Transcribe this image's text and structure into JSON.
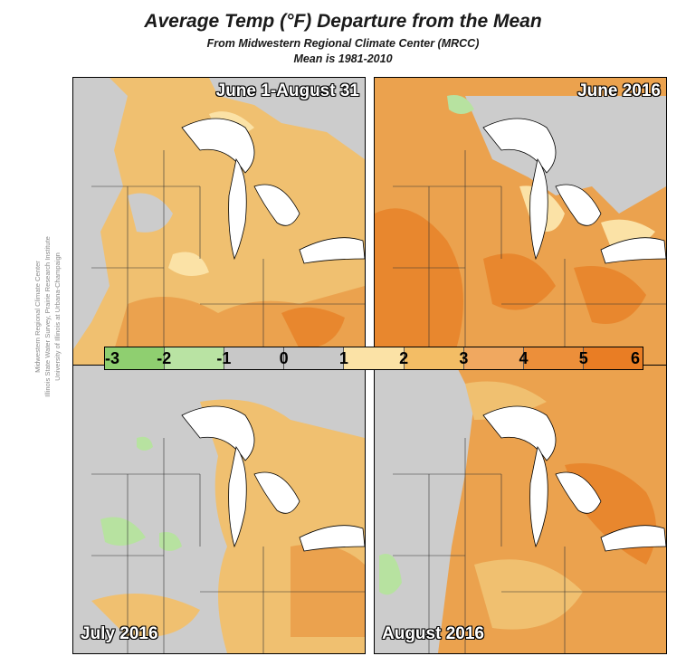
{
  "header": {
    "title": "Average Temp (°F) Departure from the Mean",
    "subtitle1": "From Midwestern Regional Climate Center (MRCC)",
    "subtitle2": "Mean is 1981-2010"
  },
  "credit": {
    "line1": "Midwestern Regional Climate Center",
    "line2": "Illinois State Water Survey, Prairie Research Institute",
    "line3": "University of Illinois at Urbana-Champaign"
  },
  "panels": {
    "summer": {
      "label": "June 1-August 31"
    },
    "june": {
      "label": "June 2016"
    },
    "july": {
      "label": "July 2016"
    },
    "august": {
      "label": "August 2016"
    }
  },
  "legend": {
    "ticks": [
      "-3",
      "-2",
      "-1",
      "0",
      "1",
      "2",
      "3",
      "4",
      "5",
      "6"
    ],
    "colors": [
      "#8fcf70",
      "#b9e3a3",
      "#c8c8c8",
      "#c8c8c8",
      "#fbe2a6",
      "#f3bd65",
      "#f0a860",
      "#ec8f3a",
      "#e97d24"
    ]
  },
  "colors": {
    "gray": "#cccccc",
    "pale": "#fbe2a6",
    "orange_light": "#f0c070",
    "orange": "#eba24e",
    "orange_dark": "#e8872e",
    "green": "#b7e2a0",
    "water": "#ffffff"
  }
}
